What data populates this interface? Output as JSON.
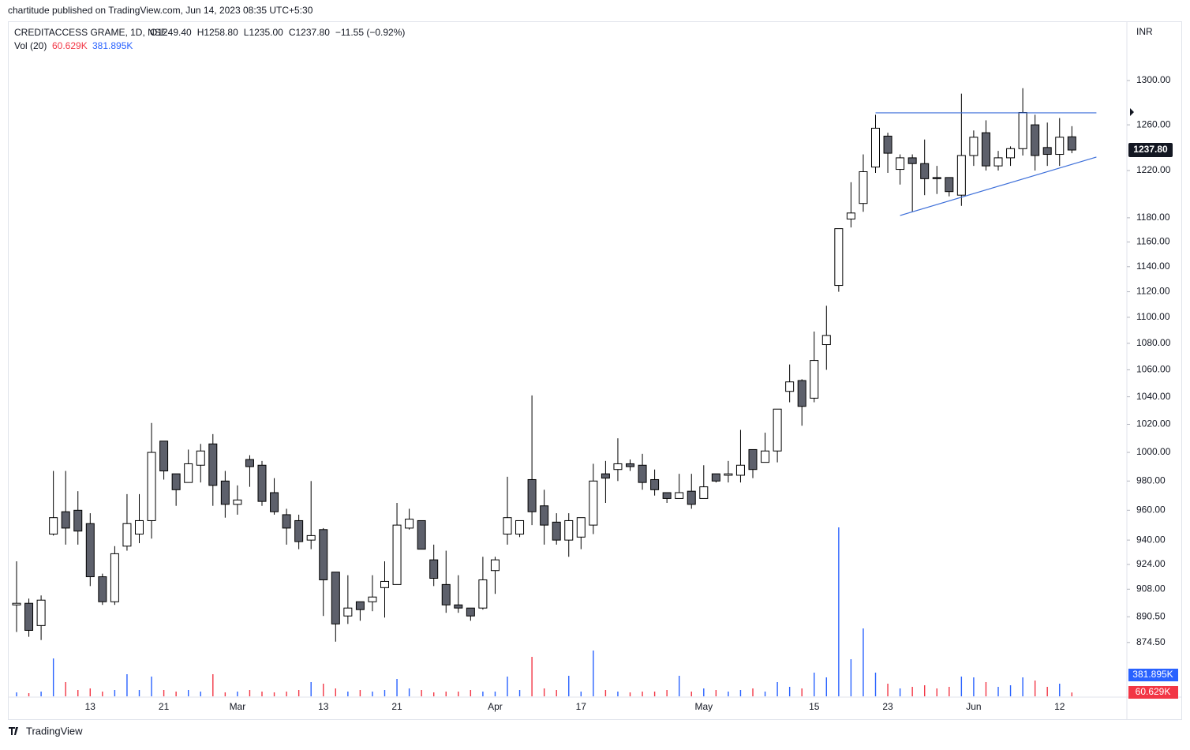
{
  "header": {
    "published": "chartitude published on TradingView.com, Jun 14, 2023 08:35 UTC+5:30"
  },
  "footer": "TradingView",
  "chart_data": {
    "type": "candlestick",
    "symbol": "CREDITACCESS GRAME, 1D, NSE",
    "ohlc_labels": [
      "O1249.40",
      "H1258.80",
      "L1235.00",
      "C1237.80",
      "−11.55 (−0.92%)"
    ],
    "currency": "INR",
    "log_scale": true,
    "categories": [
      null,
      null,
      null,
      null,
      null,
      null,
      "13",
      null,
      null,
      null,
      null,
      null,
      "21",
      null,
      null,
      null,
      null,
      null,
      "Mar",
      null,
      null,
      null,
      null,
      null,
      null,
      "13",
      null,
      null,
      null,
      null,
      null,
      "21",
      null,
      null,
      null,
      null,
      null,
      null,
      null,
      "Apr",
      null,
      null,
      null,
      null,
      null,
      null,
      "17",
      null,
      null,
      null,
      null,
      null,
      null,
      null,
      null,
      null,
      "May",
      null,
      null,
      null,
      null,
      null,
      null,
      null,
      null,
      "15",
      null,
      null,
      null,
      null,
      null,
      "23",
      null,
      null,
      null,
      null,
      null,
      null,
      "Jun",
      null,
      null,
      null,
      null,
      null,
      null,
      "12",
      null
    ],
    "open": [
      898,
      899,
      885,
      944,
      959,
      960,
      951,
      916,
      900,
      936,
      944,
      953,
      1008,
      985,
      979,
      991,
      1006,
      980,
      964,
      995,
      991,
      972,
      957,
      953,
      940,
      947,
      919,
      891,
      900,
      900,
      909,
      911,
      948,
      953,
      927,
      911,
      898,
      896,
      896,
      920,
      944,
      944,
      981,
      963,
      952,
      940,
      942,
      950,
      985,
      988,
      992,
      991,
      981,
      972,
      968,
      973,
      968,
      985,
      984,
      984,
      1002,
      993,
      1001,
      1044,
      1052,
      1039,
      1079,
      1125,
      1179,
      1192,
      1223,
      1250,
      1221,
      1231,
      1226,
      1214,
      1214,
      1199,
      1233,
      1253,
      1224,
      1231,
      1239,
      1260,
      1240,
      1234,
      1249.4
    ],
    "high": [
      926,
      902,
      904,
      987,
      987,
      973,
      958,
      918,
      936,
      971,
      971,
      1021,
      1008,
      985,
      1002,
      1006,
      1013,
      987,
      977,
      998,
      994,
      982,
      961,
      957,
      980,
      948,
      919,
      917,
      900,
      917,
      926,
      965,
      961,
      953,
      937,
      933,
      917,
      896,
      929,
      929,
      983,
      953,
      1041,
      974,
      958,
      958,
      955,
      992,
      994,
      1010,
      995,
      999,
      988,
      972,
      985,
      985,
      991,
      985,
      994,
      1016,
      1002,
      1014,
      1031,
      1064,
      1053,
      1089,
      1109,
      1171,
      1210,
      1234,
      1269,
      1253,
      1234,
      1234,
      1247,
      1224,
      1214,
      1288,
      1255,
      1264,
      1237,
      1241,
      1293,
      1269,
      1262,
      1266,
      1258.8
    ],
    "low": [
      881,
      878,
      876,
      943,
      937,
      937,
      910,
      898,
      898,
      933,
      938,
      941,
      981,
      963,
      979,
      979,
      963,
      955,
      957,
      976,
      963,
      957,
      937,
      934,
      934,
      891,
      875,
      886,
      888,
      894,
      890,
      911,
      947,
      934,
      910,
      893,
      893,
      888,
      895,
      905,
      937,
      942,
      950,
      937,
      937,
      929,
      934,
      944,
      965,
      980,
      987,
      974,
      970,
      965,
      968,
      961,
      968,
      979,
      979,
      979,
      982,
      993,
      993,
      1036,
      1019,
      1036,
      1060,
      1120,
      1172,
      1185,
      1218,
      1218,
      1208,
      1185,
      1199,
      1200,
      1198,
      1190,
      1224,
      1220,
      1220,
      1224,
      1233,
      1220,
      1224,
      1224,
      1235
    ],
    "close": [
      899,
      882,
      901,
      955,
      948,
      946,
      916,
      900,
      931,
      951,
      953,
      1000,
      987,
      974,
      992,
      1001,
      977,
      964,
      967,
      990,
      966,
      959,
      948,
      939,
      943,
      914,
      886,
      896,
      895,
      903,
      913,
      950,
      954,
      934,
      915,
      898,
      896,
      891,
      914,
      927,
      955,
      953,
      959,
      950,
      940,
      953,
      955,
      980,
      982,
      992,
      990,
      979,
      974,
      968,
      972,
      964,
      976,
      980,
      985,
      991,
      988,
      1001,
      1031,
      1051,
      1033,
      1067,
      1086,
      1171,
      1184,
      1219,
      1257,
      1235,
      1231,
      1226,
      1213,
      1213,
      1202,
      1233,
      1249,
      1224,
      1231,
      1239,
      1271,
      1233,
      1234,
      1249,
      1237.8
    ],
    "up_color": "#ffffff",
    "down_color": "#5d606b",
    "volume_label": "Vol (20)",
    "volume": [
      62.5,
      50,
      75,
      600,
      225,
      100,
      125,
      75,
      100,
      350,
      100,
      312.5,
      100,
      75,
      100,
      75,
      350,
      62.5,
      75,
      100,
      75,
      62.5,
      75,
      100,
      225,
      200,
      125,
      75,
      100,
      75,
      100,
      275,
      125,
      100,
      62.5,
      75,
      75,
      100,
      75,
      75,
      312.5,
      100,
      625,
      125,
      100,
      325,
      75,
      725,
      100,
      75,
      62.5,
      75,
      75,
      100,
      325,
      75,
      125,
      100,
      75,
      100,
      125,
      75,
      225,
      150,
      125,
      375,
      300,
      2675,
      587.5,
      1075,
      375,
      200,
      125,
      150,
      175,
      125,
      150,
      312.5,
      300,
      225,
      150,
      175,
      300,
      250,
      150,
      200,
      60.629
    ],
    "volume_ylim": [
      0,
      2800
    ],
    "volume_up_color": "#2962ff",
    "volume_down_color": "#f23645",
    "volume_last": {
      "value": 60.629,
      "label": "60.629K"
    },
    "volume_ma": {
      "value": 381.895,
      "label": "381.895K"
    },
    "last_price": {
      "value": 1237.8,
      "label": "1237.80"
    },
    "ylim": [
      841.9,
      1354.7
    ],
    "yticks": [
      {
        "value": 1300,
        "label": "1300.00"
      },
      {
        "value": 1260,
        "label": "1260.00"
      },
      {
        "value": 1220,
        "label": "1220.00"
      },
      {
        "value": 1180,
        "label": "1180.00"
      },
      {
        "value": 1160,
        "label": "1160.00"
      },
      {
        "value": 1140,
        "label": "1140.00"
      },
      {
        "value": 1120,
        "label": "1120.00"
      },
      {
        "value": 1100,
        "label": "1100.00"
      },
      {
        "value": 1080,
        "label": "1080.00"
      },
      {
        "value": 1060,
        "label": "1060.00"
      },
      {
        "value": 1040,
        "label": "1040.00"
      },
      {
        "value": 1020,
        "label": "1020.00"
      },
      {
        "value": 1000,
        "label": "1000.00"
      },
      {
        "value": 980,
        "label": "980.00"
      },
      {
        "value": 960,
        "label": "960.00"
      },
      {
        "value": 940,
        "label": "940.00"
      },
      {
        "value": 924,
        "label": "924.00"
      },
      {
        "value": 908,
        "label": "908.00"
      },
      {
        "value": 890.5,
        "label": "890.50"
      },
      {
        "value": 874.5,
        "label": "874.50"
      }
    ],
    "trendlines": [
      {
        "x": [
          70,
          88
        ],
        "y": [
          1270.7,
          1270.7
        ]
      },
      {
        "x": [
          72,
          88
        ],
        "y": [
          1181.9,
          1231.7
        ]
      }
    ],
    "trendline_color": "#3d6fd9"
  }
}
